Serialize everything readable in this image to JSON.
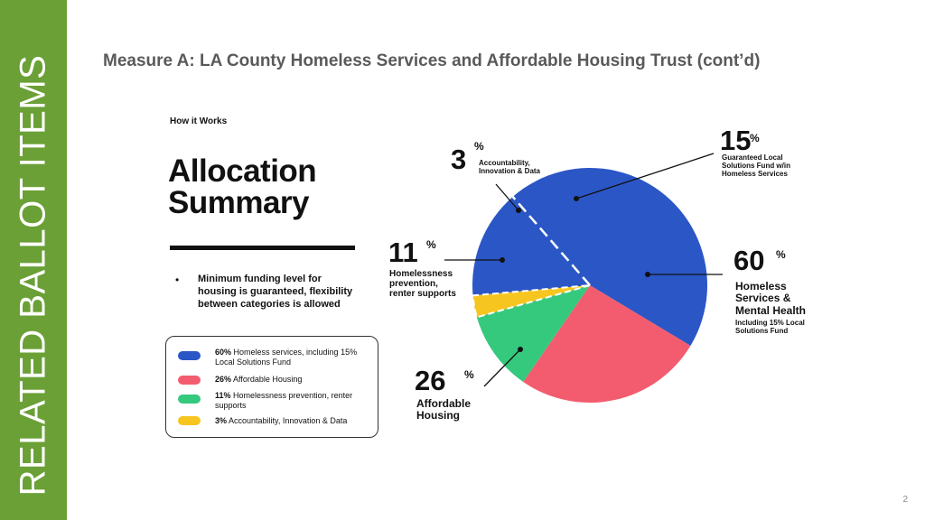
{
  "sidebar": {
    "title": "RELATED BALLOT ITEMS",
    "color": "#6aa035"
  },
  "slide": {
    "title": "Measure A: LA County Homeless Services and Affordable Housing Trust (cont’d)",
    "page_number": "2"
  },
  "infographic": {
    "eyebrow": "How it Works",
    "heading_line1": "Allocation",
    "heading_line2": "Summary",
    "bullet": "Minimum funding level for housing is guaranteed, flexibility between categories is allowed"
  },
  "legend": [
    {
      "pct": "60%",
      "text": " Homeless services, including 15% Local Solutions Fund",
      "color": "#2b56c6"
    },
    {
      "pct": "26%",
      "text": " Affordable Housing",
      "color": "#f25c6e"
    },
    {
      "pct": "11%",
      "text": " Homelessness prevention, renter supports",
      "color": "#35c97e"
    },
    {
      "pct": "3%",
      "text": " Accountability, Innovation & Data",
      "color": "#f7c520"
    }
  ],
  "annotations": {
    "homeless": {
      "pct": "60",
      "line1": "Homeless",
      "line2": "Services &",
      "line3": "Mental Health",
      "sub1": "Including 15% Local",
      "sub2": "Solutions Fund"
    },
    "affordable": {
      "pct": "26",
      "line1": "Affordable",
      "line2": "Housing"
    },
    "prevention": {
      "pct": "11",
      "line1": "Homelessness",
      "line2": "prevention,",
      "line3": "renter supports"
    },
    "accountability": {
      "pct": "3",
      "line1": "Accountability,",
      "line2": "Innovation & Data"
    },
    "local": {
      "pct": "15",
      "line1": "Guaranteed Local",
      "line2": "Solutions Fund w/in",
      "line3": "Homeless Services"
    },
    "percent_sign": "%"
  },
  "chart_data": {
    "type": "pie",
    "title": "Allocation Summary",
    "slices": [
      {
        "name": "Homeless Services & Mental Health",
        "value": 60,
        "color": "#2b56c6",
        "includes": {
          "name": "Guaranteed Local Solutions Fund w/in Homeless Services",
          "value": 15
        }
      },
      {
        "name": "Affordable Housing",
        "value": 26,
        "color": "#f25c6e"
      },
      {
        "name": "Homelessness prevention, renter supports",
        "value": 11,
        "color": "#35c97e"
      },
      {
        "name": "Accountability, Innovation & Data",
        "value": 3,
        "color": "#f7c520"
      }
    ]
  }
}
